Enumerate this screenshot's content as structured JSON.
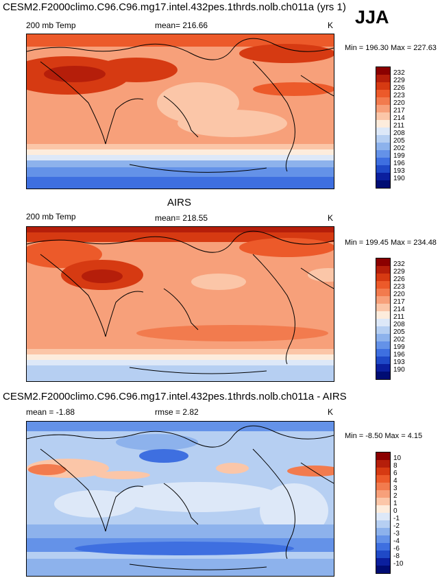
{
  "figure": {
    "season": "JJA",
    "units": "K"
  },
  "chart_data": [
    {
      "type": "heatmap",
      "title": "CESM2.F2000climo.C96.C96.mg17.intel.432pes.1thrds.nolb.ch011a (yrs 1)",
      "subtitle": "200 mb Temp",
      "mean_label": "mean= 216.66",
      "minmax_label": "Min = 196.30 Max = 227.63",
      "stats": {
        "mean": 216.66,
        "min": 196.3,
        "max": 227.63
      },
      "units": "K",
      "colorbar": {
        "levels": [
          "232",
          "229",
          "226",
          "223",
          "220",
          "217",
          "214",
          "211",
          "208",
          "205",
          "202",
          "199",
          "196",
          "193",
          "190"
        ],
        "colors": [
          "#8b0000",
          "#b51e0a",
          "#d63a12",
          "#ec5a2a",
          "#f27b4e",
          "#f7a07a",
          "#fbc6a8",
          "#fdecdc",
          "#dde8f8",
          "#b6cff2",
          "#8db2ec",
          "#6492e8",
          "#3e6fe0",
          "#1f49c7",
          "#0b1f9e",
          "#000c73"
        ]
      },
      "grid": false,
      "xlabel": "",
      "ylabel": ""
    },
    {
      "type": "heatmap",
      "title": "AIRS",
      "subtitle": "200 mb Temp",
      "mean_label": "mean= 218.55",
      "minmax_label": "Min = 199.45 Max = 234.48",
      "stats": {
        "mean": 218.55,
        "min": 199.45,
        "max": 234.48
      },
      "units": "K",
      "colorbar": {
        "levels": [
          "232",
          "229",
          "226",
          "223",
          "220",
          "217",
          "214",
          "211",
          "208",
          "205",
          "202",
          "199",
          "196",
          "193",
          "190"
        ],
        "colors": [
          "#8b0000",
          "#b51e0a",
          "#d63a12",
          "#ec5a2a",
          "#f27b4e",
          "#f7a07a",
          "#fbc6a8",
          "#fdecdc",
          "#dde8f8",
          "#b6cff2",
          "#8db2ec",
          "#6492e8",
          "#3e6fe0",
          "#1f49c7",
          "#0b1f9e",
          "#000c73"
        ]
      },
      "grid": false,
      "xlabel": "",
      "ylabel": ""
    },
    {
      "type": "heatmap",
      "title": "CESM2.F2000climo.C96.C96.mg17.intel.432pes.1thrds.nolb.ch011a - AIRS",
      "subtitle": "mean =  -1.88",
      "rmse_label": "rmse =   2.82",
      "minmax_label": "Min =  -8.50 Max =   4.15",
      "stats": {
        "mean": -1.88,
        "rmse": 2.82,
        "min": -8.5,
        "max": 4.15
      },
      "units": "K",
      "colorbar": {
        "levels": [
          "10",
          "8",
          "6",
          "4",
          "3",
          "2",
          "1",
          "0",
          "-1",
          "-2",
          "-3",
          "-4",
          "-6",
          "-8",
          "-10"
        ],
        "colors": [
          "#8b0000",
          "#b51e0a",
          "#d63a12",
          "#ec5a2a",
          "#f27b4e",
          "#f7a07a",
          "#fbc6a8",
          "#fdecdc",
          "#dde8f8",
          "#b6cff2",
          "#8db2ec",
          "#6492e8",
          "#3e6fe0",
          "#1f49c7",
          "#0b1f9e",
          "#000c73"
        ]
      },
      "grid": false,
      "xlabel": "",
      "ylabel": ""
    }
  ]
}
